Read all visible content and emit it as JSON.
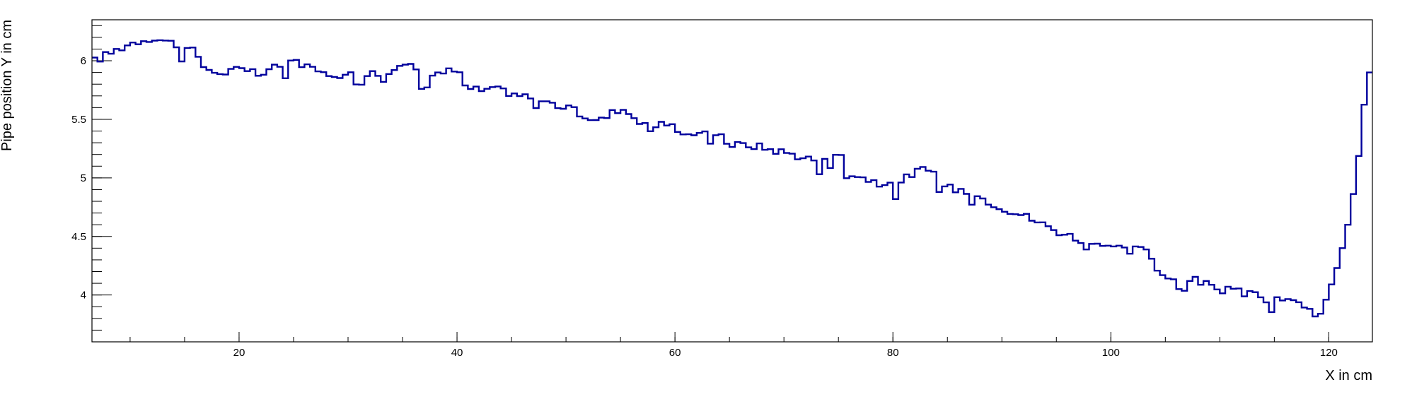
{
  "chart_data": {
    "type": "line",
    "style": "step-histogram",
    "title": "",
    "xlabel": "X in cm",
    "ylabel": "Pipe position Y in cm",
    "xlim": [
      6.5,
      124
    ],
    "ylim": [
      3.6,
      6.35
    ],
    "x_major_ticks": [
      20,
      40,
      60,
      80,
      100,
      120
    ],
    "x_tick_labels": [
      "20",
      "40",
      "60",
      "80",
      "100",
      "120"
    ],
    "x_minor_step": 5,
    "y_major_ticks": [
      4,
      4.5,
      5,
      5.5,
      6
    ],
    "y_tick_labels": [
      "4",
      "4.5",
      "5",
      "5.5",
      "6"
    ],
    "y_minor_step": 0.1,
    "grid": false,
    "line_color": "#00009c",
    "bin_width": 0.5,
    "series": [
      {
        "name": "Pipe position Y",
        "x": [
          6.75,
          10,
          12,
          14,
          16,
          17,
          20,
          22,
          25,
          27,
          30,
          33,
          35.5,
          37,
          40,
          41,
          44,
          47,
          50,
          53,
          55,
          57,
          60,
          62,
          64,
          65,
          67,
          70,
          73,
          75,
          76,
          78,
          80,
          82,
          83,
          85,
          87,
          90,
          92,
          95,
          97,
          100,
          102,
          103,
          104,
          105,
          107,
          110,
          112,
          115,
          118,
          119,
          120,
          121,
          122,
          123,
          123.5
        ],
        "y": [
          6.0,
          6.15,
          6.2,
          6.15,
          6.1,
          5.9,
          5.92,
          5.88,
          6.02,
          5.9,
          5.88,
          5.9,
          5.96,
          5.88,
          5.92,
          5.75,
          5.75,
          5.68,
          5.6,
          5.48,
          5.6,
          5.48,
          5.42,
          5.35,
          5.4,
          5.28,
          5.28,
          5.22,
          5.15,
          5.22,
          5.05,
          4.98,
          4.92,
          5.05,
          5.08,
          4.92,
          4.88,
          4.75,
          4.68,
          4.55,
          4.48,
          4.42,
          4.38,
          4.45,
          4.25,
          4.12,
          4.15,
          4.05,
          4.02,
          3.95,
          3.92,
          3.78,
          4.02,
          4.3,
          4.7,
          5.35,
          5.9
        ]
      }
    ]
  }
}
